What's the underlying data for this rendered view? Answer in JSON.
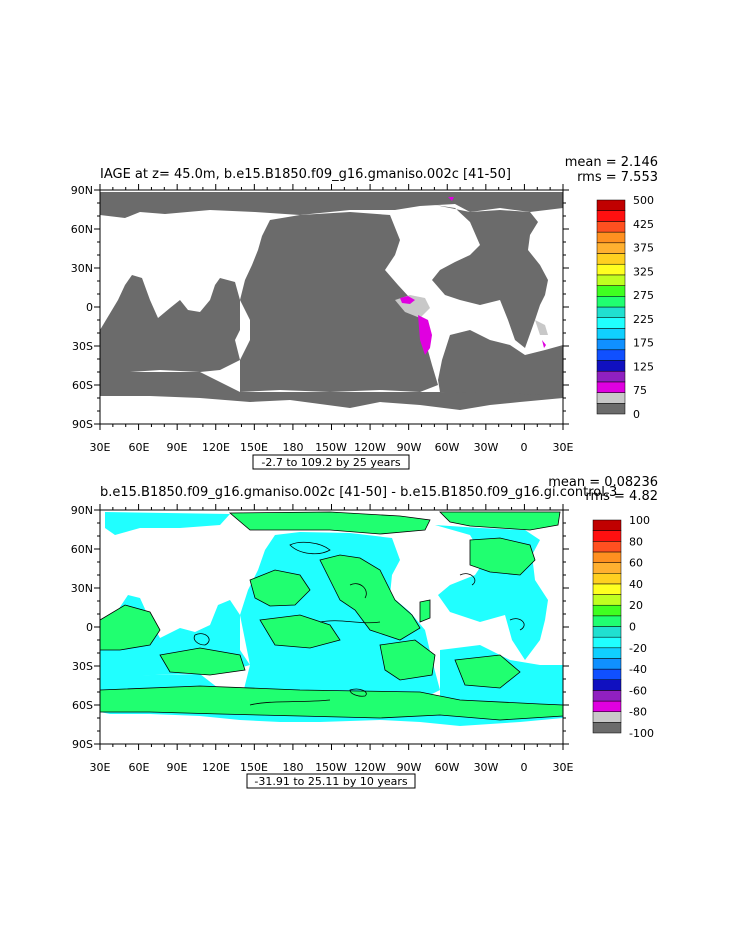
{
  "panels": [
    {
      "title": "IAGE at z=   45.0m, b.e15.B1850.f09_g16.gmaniso.002c [41-50]",
      "stat_mean": "mean = 2.146",
      "stat_rms": "rms = 7.553",
      "range_box": "-2.7 to 109.2 by 25 years",
      "lat_labels": [
        "90N",
        "60N",
        "30N",
        "0",
        "30S",
        "60S",
        "90S"
      ],
      "lon_labels": [
        "30E",
        "60E",
        "90E",
        "120E",
        "150E",
        "180",
        "150W",
        "120W",
        "90W",
        "60W",
        "30W",
        "0",
        "30E"
      ],
      "colorbar": {
        "colors": [
          "#6b6b6b",
          "#c8c8c8",
          "#e000e0",
          "#9020c0",
          "#1010c0",
          "#1050ff",
          "#1090ff",
          "#10d0ff",
          "#20ffff",
          "#20e0d0",
          "#20ff70",
          "#40ff20",
          "#c0ff20",
          "#ffff20",
          "#ffd020",
          "#ffb030",
          "#ff9020",
          "#ff5020",
          "#ff1010",
          "#c00000"
        ],
        "labels": [
          "0",
          "75",
          "125",
          "175",
          "225",
          "275",
          "325",
          "375",
          "425",
          "500"
        ]
      }
    },
    {
      "title": "b.e15.B1850.f09_g16.gmaniso.002c [41-50] - b.e15.B1850.f09_g16.gi.control.3",
      "stat_mean": "mean = 0.08236",
      "stat_rms": "rms = 4.82",
      "range_box": "-31.91 to 25.11 by 10 years",
      "lat_labels": [
        "90N",
        "60N",
        "30N",
        "0",
        "30S",
        "60S",
        "90S"
      ],
      "lon_labels": [
        "30E",
        "60E",
        "90E",
        "120E",
        "150E",
        "180",
        "150W",
        "120W",
        "90W",
        "60W",
        "30W",
        "0",
        "30E"
      ],
      "colorbar": {
        "colors": [
          "#6b6b6b",
          "#c8c8c8",
          "#e000e0",
          "#9020c0",
          "#1010c0",
          "#1050ff",
          "#1090ff",
          "#10d0ff",
          "#20ffff",
          "#20e0d0",
          "#20ff70",
          "#40ff20",
          "#c0ff20",
          "#ffff20",
          "#ffd020",
          "#ffb030",
          "#ff9020",
          "#ff5020",
          "#ff1010",
          "#c00000"
        ],
        "labels": [
          "-100",
          "-80",
          "-60",
          "-40",
          "-20",
          "0",
          "20",
          "40",
          "60",
          "80",
          "100"
        ]
      }
    }
  ],
  "colors": {
    "land": "#6b6b6b",
    "grey_light": "#c8c8c8",
    "magenta": "#e000e0",
    "cyan": "#20ffff",
    "green": "#20ff70",
    "white": "#ffffff"
  }
}
